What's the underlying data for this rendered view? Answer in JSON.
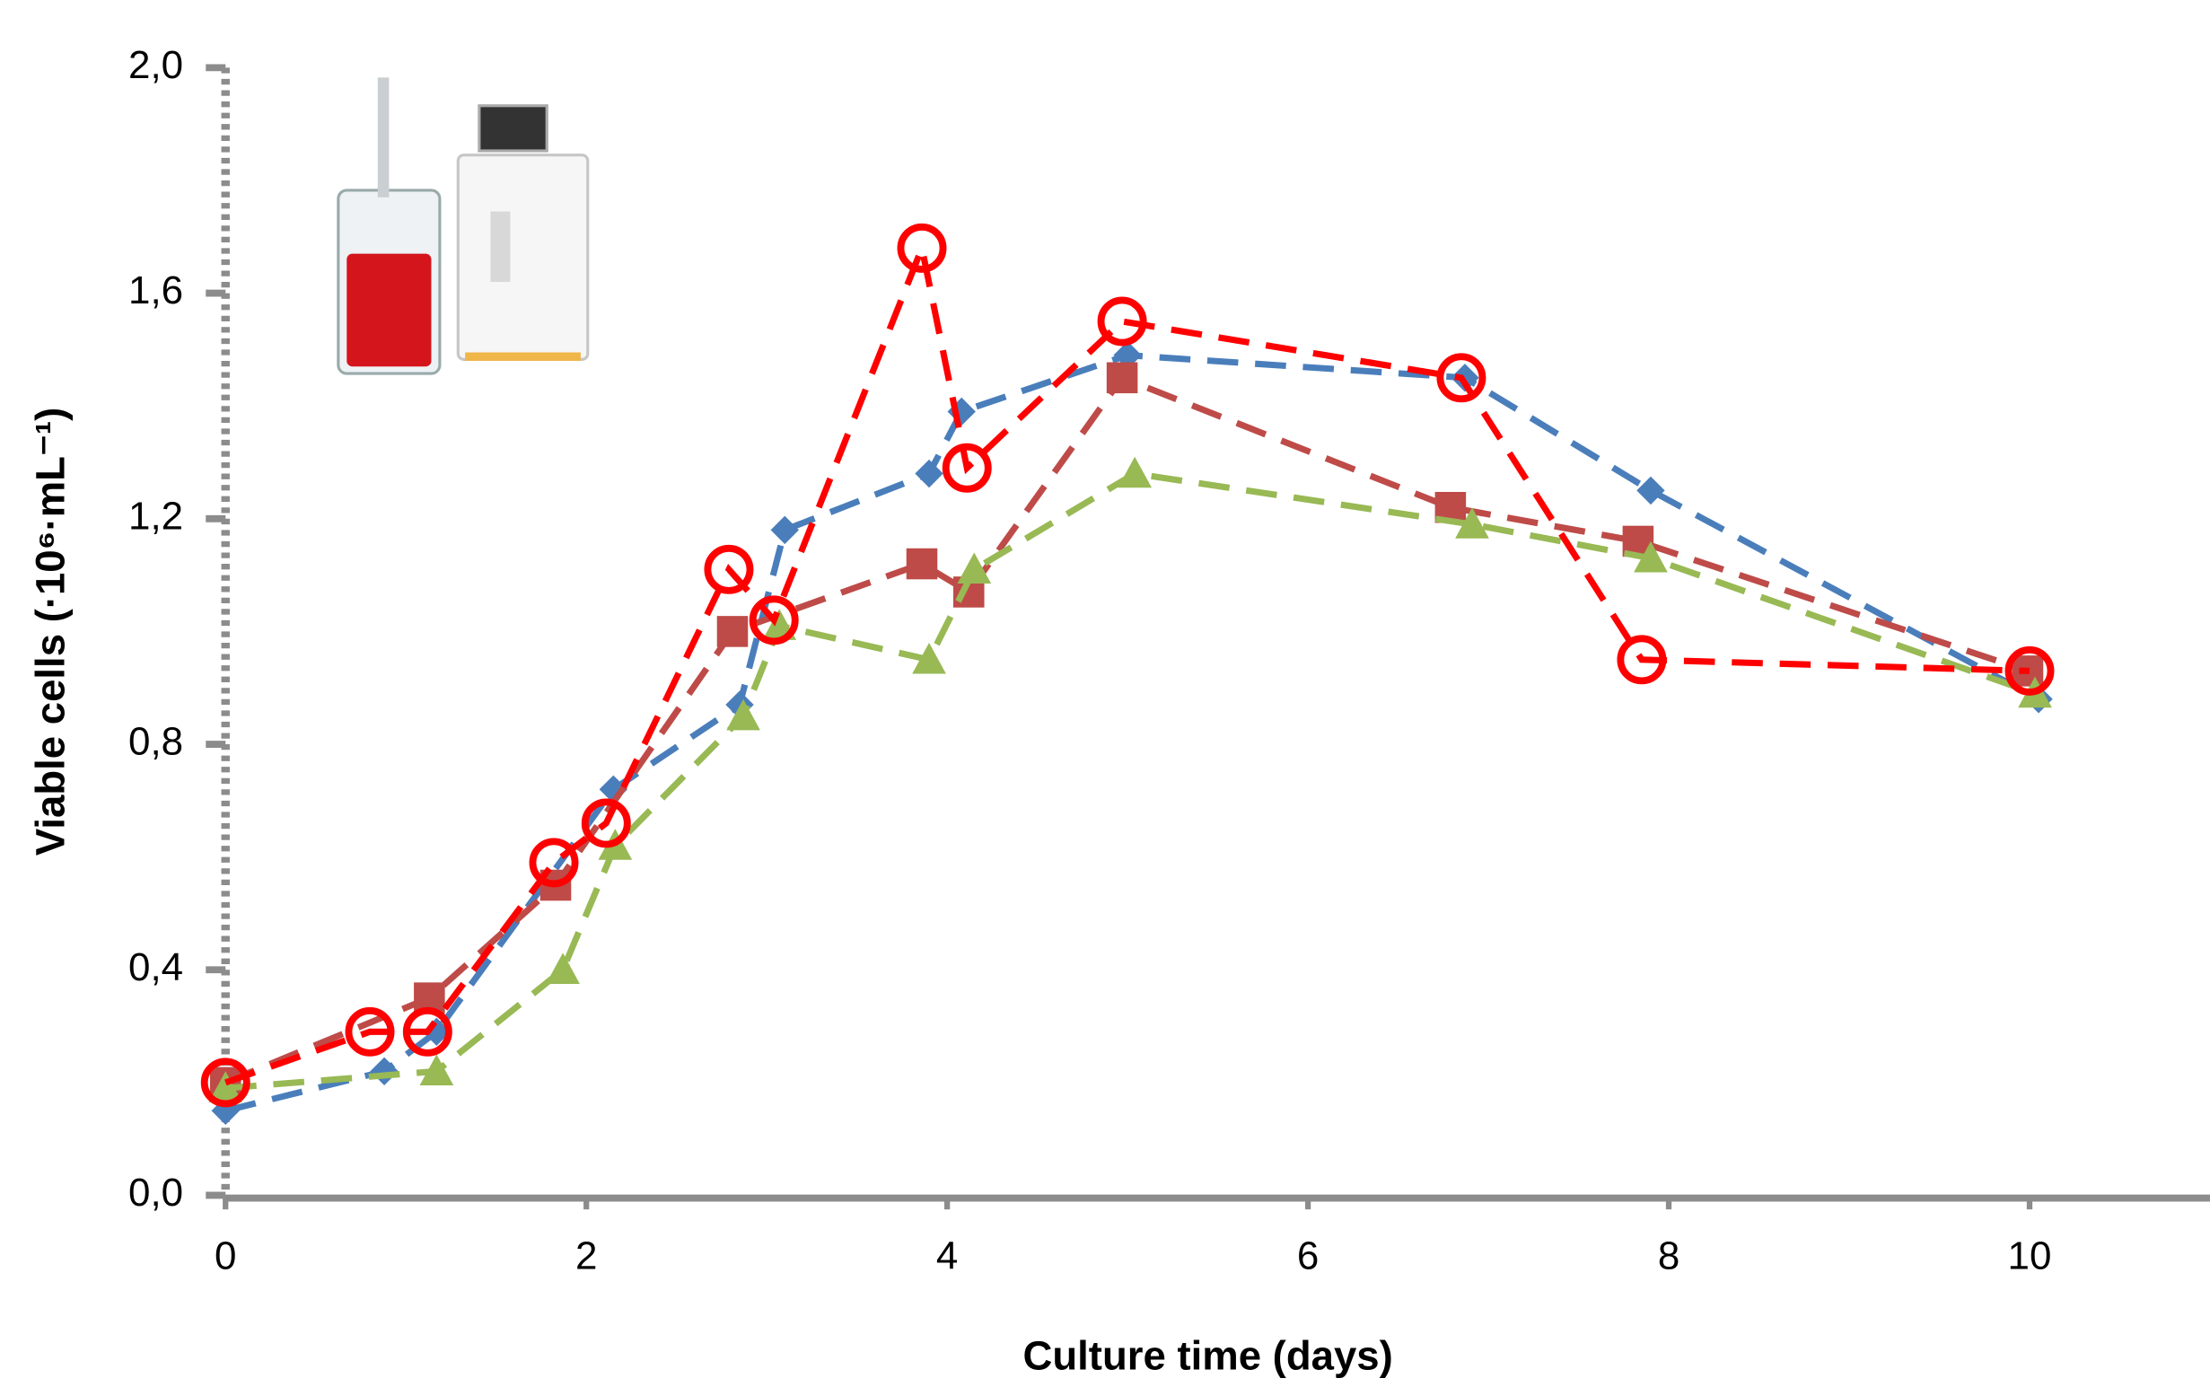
{
  "chart_data": {
    "type": "line",
    "xlabel": "Culture time (days)",
    "ylabel": "Viable cells (·10⁶·mL⁻¹)",
    "xlim": [
      0,
      11
    ],
    "xticks": [
      0,
      2,
      4,
      6,
      8,
      10
    ],
    "ylim": [
      0,
      2
    ],
    "yticks": [
      {
        "value": 0,
        "label": "0,0"
      },
      {
        "value": 0.4,
        "label": "0,4"
      },
      {
        "value": 0.8,
        "label": "0,8"
      },
      {
        "value": 1.2,
        "label": "1,2"
      },
      {
        "value": 1.6,
        "label": "1,6"
      },
      {
        "value": 2,
        "label": "2,0"
      }
    ],
    "series": [
      {
        "color": "#4a7ebb",
        "marker": "diamond",
        "x": [
          0,
          0.88,
          1.17,
          2.15,
          2.85,
          3.1,
          3.9,
          4.08,
          5.0,
          6.87,
          7.9,
          10.05
        ],
        "values": [
          0.15,
          0.22,
          0.29,
          0.72,
          0.87,
          1.18,
          1.28,
          1.39,
          1.49,
          1.45,
          1.25,
          0.88
        ]
      },
      {
        "color": "#be4b48",
        "marker": "square",
        "x": [
          0,
          1.13,
          1.83,
          2.81,
          3.86,
          4.12,
          4.97,
          6.79,
          7.83,
          9.99
        ],
        "values": [
          0.2,
          0.35,
          0.55,
          1.0,
          1.12,
          1.07,
          1.45,
          1.22,
          1.16,
          0.93
        ]
      },
      {
        "color": "#98b954",
        "marker": "triangle",
        "x": [
          0,
          1.17,
          1.87,
          2.16,
          2.87,
          3.07,
          3.9,
          4.15,
          5.04,
          6.91,
          7.9,
          10.03
        ],
        "values": [
          0.19,
          0.22,
          0.4,
          0.62,
          0.85,
          1.01,
          0.95,
          1.11,
          1.28,
          1.19,
          1.13,
          0.89
        ]
      },
      {
        "color": "#ff0000",
        "marker": "open-circle",
        "x": [
          0,
          0.8,
          1.12,
          1.82,
          2.11,
          2.79,
          3.04,
          3.86,
          4.11,
          4.97,
          6.85,
          7.85,
          10
        ],
        "values": [
          0.2,
          0.29,
          0.29,
          0.59,
          0.66,
          1.11,
          1.02,
          1.68,
          1.29,
          1.55,
          1.45,
          0.95,
          0.93
        ]
      }
    ]
  }
}
